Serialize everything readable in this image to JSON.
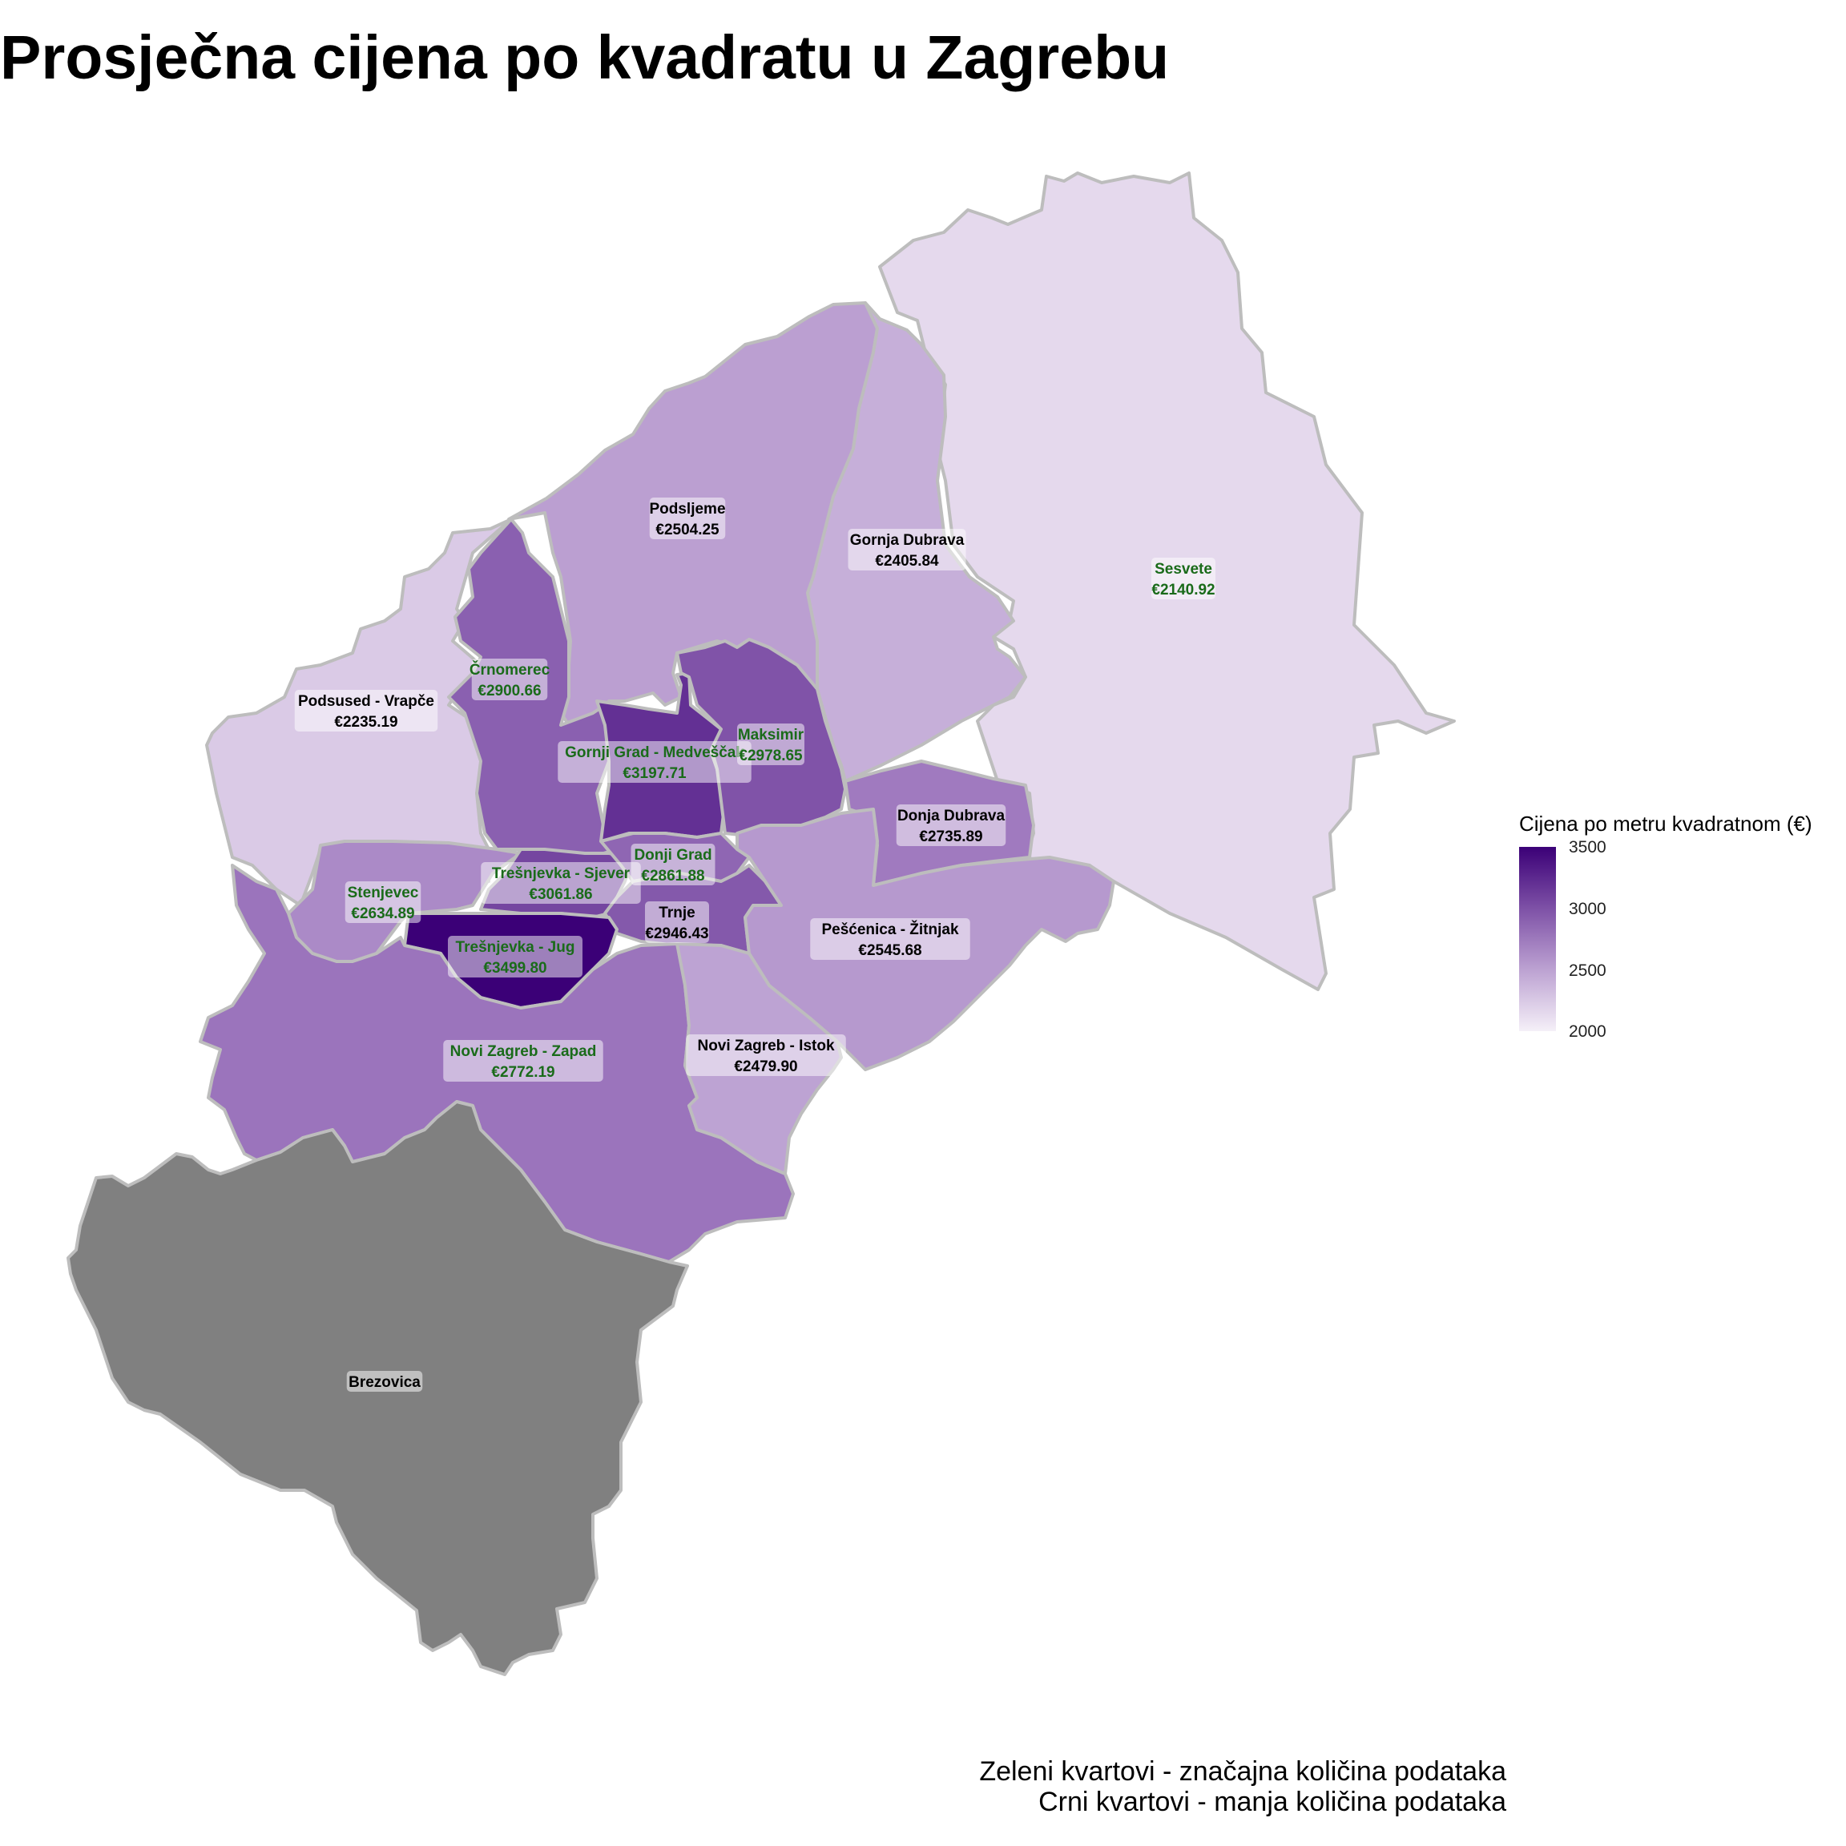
{
  "title": "Prosječna cijena po kvadratu u Zagrebu",
  "legend": {
    "title": "Cijena po metru kvadratnom (€)",
    "ticks": [
      "3500",
      "3000",
      "2500",
      "2000"
    ],
    "min": 2000,
    "max": 3500,
    "color_low": "#f5f0f8",
    "color_high": "#3b0077"
  },
  "caption": {
    "line1": "Zeleni kvartovi - značajna količina podataka",
    "line2": "Crni kvartovi - manja količina podataka"
  },
  "colors": {
    "significant_label": "#1a6b1a",
    "sparse_label": "#000000",
    "no_data_fill": "#808080",
    "border": "#bdbdbd"
  },
  "map_data": {
    "districts": [
      {
        "id": "sesvete",
        "name": "Sesvete",
        "price_label": "€2140.92",
        "price": 2140.92,
        "significant": true
      },
      {
        "id": "podsljeme",
        "name": "Podsljeme",
        "price_label": "€2504.25",
        "price": 2504.25,
        "significant": false
      },
      {
        "id": "gornja-dubrava",
        "name": "Gornja Dubrava",
        "price_label": "€2405.84",
        "price": 2405.84,
        "significant": false
      },
      {
        "id": "podsused-vrapce",
        "name": "Podsused - Vrapče",
        "price_label": "€2235.19",
        "price": 2235.19,
        "significant": false
      },
      {
        "id": "crnomerec",
        "name": "Črnomerec",
        "price_label": "€2900.66",
        "price": 2900.66,
        "significant": true
      },
      {
        "id": "gornji-grad-medvescak",
        "name": "Gornji Grad - Medveščak",
        "price_label": "€3197.71",
        "price": 3197.71,
        "significant": true
      },
      {
        "id": "maksimir",
        "name": "Maksimir",
        "price_label": "€2978.65",
        "price": 2978.65,
        "significant": true
      },
      {
        "id": "donja-dubrava",
        "name": "Donja Dubrava",
        "price_label": "€2735.89",
        "price": 2735.89,
        "significant": false
      },
      {
        "id": "stenjevec",
        "name": "Stenjevec",
        "price_label": "€2634.89",
        "price": 2634.89,
        "significant": true
      },
      {
        "id": "tresnjevka-sjever",
        "name": "Trešnjevka - Sjever",
        "price_label": "€3061.86",
        "price": 3061.86,
        "significant": true
      },
      {
        "id": "donji-grad",
        "name": "Donji Grad",
        "price_label": "€2861.88",
        "price": 2861.88,
        "significant": true
      },
      {
        "id": "trnje",
        "name": "Trnje",
        "price_label": "€2946.43",
        "price": 2946.43,
        "significant": false
      },
      {
        "id": "pescenica-zitnjak",
        "name": "Pešćenica - Žitnjak",
        "price_label": "€2545.68",
        "price": 2545.68,
        "significant": false
      },
      {
        "id": "tresnjevka-jug",
        "name": "Trešnjevka - Jug",
        "price_label": "€3499.80",
        "price": 3499.8,
        "significant": true
      },
      {
        "id": "novi-zagreb-zapad",
        "name": "Novi Zagreb - Zapad",
        "price_label": "€2772.19",
        "price": 2772.19,
        "significant": true
      },
      {
        "id": "novi-zagreb-istok",
        "name": "Novi Zagreb - Istok",
        "price_label": "€2479.90",
        "price": 2479.9,
        "significant": false
      },
      {
        "id": "brezovica",
        "name": "Brezovica",
        "price_label": "",
        "price": null,
        "significant": false
      }
    ]
  }
}
